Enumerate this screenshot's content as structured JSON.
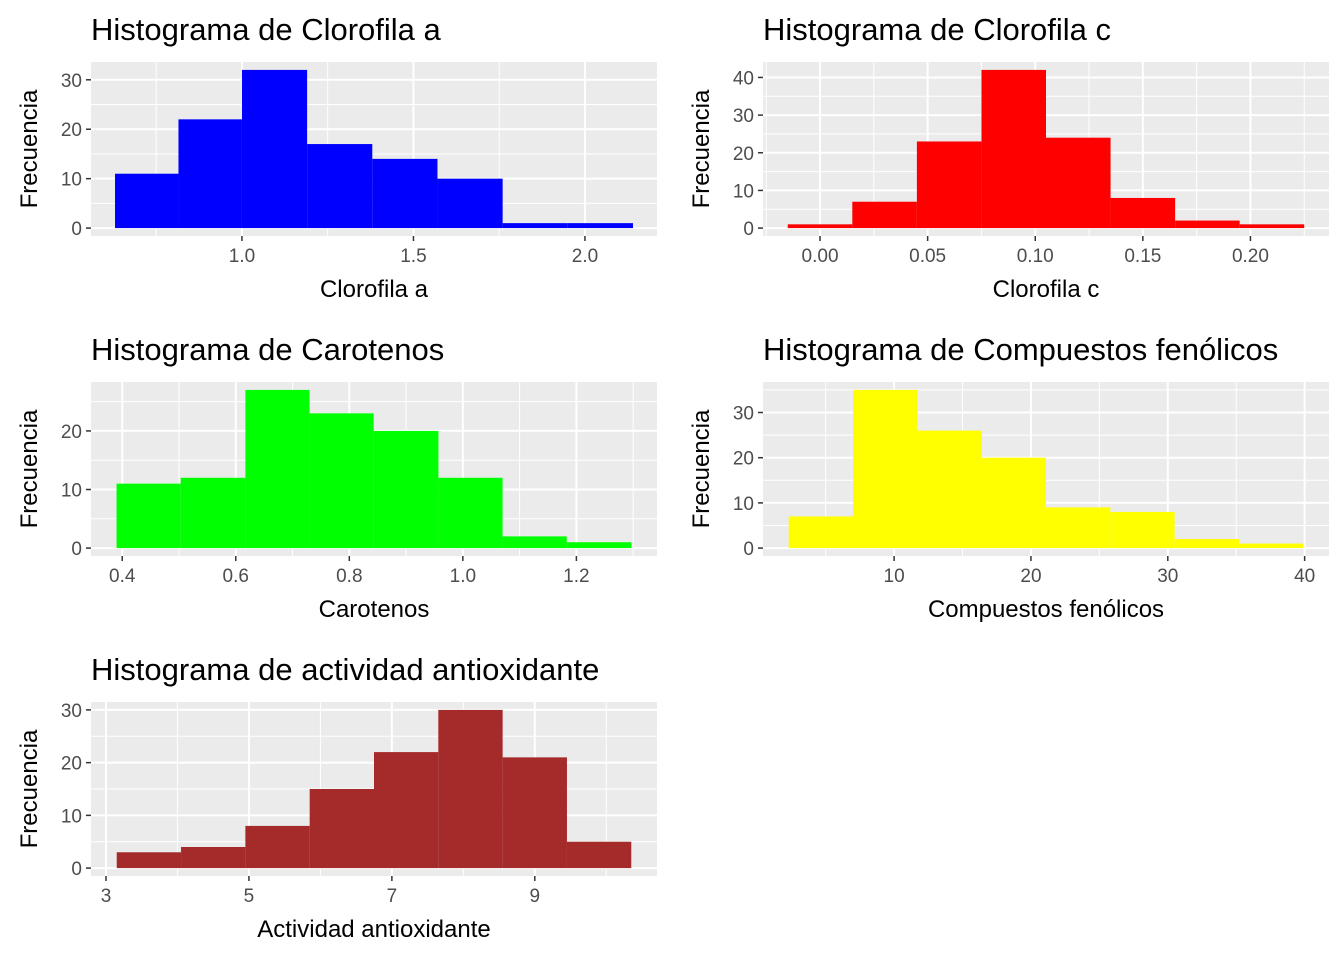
{
  "ylabel": "Frecuencia",
  "chart_data": [
    {
      "type": "bar",
      "title": "Histograma de Clorofila a",
      "xlabel": "Clorofila a",
      "ylabel": "Frecuencia",
      "color": "#0000ff",
      "bin_edges": [
        0.63,
        0.815,
        1.0,
        1.19,
        1.38,
        1.57,
        1.76,
        1.95,
        2.14
      ],
      "values": [
        11,
        22,
        32,
        17,
        14,
        10,
        1,
        1
      ],
      "xlim": [
        0.56,
        2.21
      ],
      "ylim": [
        -1.6,
        33.6
      ],
      "xticks": [
        1.0,
        1.5,
        2.0
      ],
      "xtick_labels": [
        "1.0",
        "1.5",
        "2.0"
      ],
      "yticks": [
        0,
        10,
        20,
        30
      ],
      "ytick_labels": [
        "0",
        "10",
        "20",
        "30"
      ],
      "grid": true
    },
    {
      "type": "bar",
      "title": "Histograma de Clorofila c",
      "xlabel": "Clorofila c",
      "ylabel": "Frecuencia",
      "color": "#ff0000",
      "bin_edges": [
        -0.015,
        0.015,
        0.045,
        0.075,
        0.105,
        0.135,
        0.165,
        0.195,
        0.225
      ],
      "values": [
        1,
        7,
        23,
        42,
        24,
        8,
        2,
        1
      ],
      "xlim": [
        -0.0265,
        0.2365
      ],
      "ylim": [
        -2.1,
        44.1
      ],
      "xticks": [
        0.0,
        0.05,
        0.1,
        0.15,
        0.2
      ],
      "xtick_labels": [
        "0.00",
        "0.05",
        "0.10",
        "0.15",
        "0.20"
      ],
      "yticks": [
        0,
        10,
        20,
        30,
        40
      ],
      "ytick_labels": [
        "0",
        "10",
        "20",
        "30",
        "40"
      ],
      "grid": true
    },
    {
      "type": "bar",
      "title": "Histograma de Carotenos",
      "xlabel": "Carotenos",
      "ylabel": "Frecuencia",
      "color": "#00ff00",
      "bin_edges": [
        0.39,
        0.503,
        0.617,
        0.73,
        0.843,
        0.957,
        1.07,
        1.183,
        1.297
      ],
      "values": [
        11,
        12,
        27,
        23,
        20,
        12,
        2,
        1
      ],
      "xlim": [
        0.345,
        1.342
      ],
      "ylim": [
        -1.35,
        28.35
      ],
      "xticks": [
        0.4,
        0.6,
        0.8,
        1.0,
        1.2
      ],
      "xtick_labels": [
        "0.4",
        "0.6",
        "0.8",
        "1.0",
        "1.2"
      ],
      "yticks": [
        0,
        10,
        20
      ],
      "ytick_labels": [
        "0",
        "10",
        "20"
      ],
      "grid": true
    },
    {
      "type": "bar",
      "title": "Histograma de Compuestos fenólicos",
      "xlabel": "Compuestos fenólicos",
      "ylabel": "Frecuencia",
      "color": "#ffff00",
      "bin_edges": [
        2.3,
        7.0,
        11.7,
        16.4,
        21.1,
        25.8,
        30.5,
        35.2,
        39.9
      ],
      "values": [
        7,
        35,
        26,
        20,
        9,
        8,
        2,
        1
      ],
      "xlim": [
        0.42,
        41.78
      ],
      "ylim": [
        -1.75,
        36.75
      ],
      "xticks": [
        10,
        20,
        30,
        40
      ],
      "xtick_labels": [
        "10",
        "20",
        "30",
        "40"
      ],
      "yticks": [
        0,
        10,
        20,
        30
      ],
      "ytick_labels": [
        "0",
        "10",
        "20",
        "30"
      ],
      "grid": true
    },
    {
      "type": "bar",
      "title": "Histograma de actividad antioxidante",
      "xlabel": "Actividad antioxidante",
      "ylabel": "Frecuencia",
      "color": "#a52a2a",
      "bin_edges": [
        3.15,
        4.05,
        4.95,
        5.85,
        6.75,
        7.65,
        8.55,
        9.45,
        10.35
      ],
      "values": [
        3,
        4,
        8,
        15,
        22,
        30,
        21,
        5
      ],
      "xlim": [
        2.79,
        10.71
      ],
      "ylim": [
        -1.5,
        31.5
      ],
      "xticks": [
        3,
        5,
        7,
        9
      ],
      "xtick_labels": [
        "3",
        "5",
        "7",
        "9"
      ],
      "yticks": [
        0,
        10,
        20,
        30
      ],
      "ytick_labels": [
        "0",
        "10",
        "20",
        "30"
      ],
      "grid": true
    }
  ]
}
